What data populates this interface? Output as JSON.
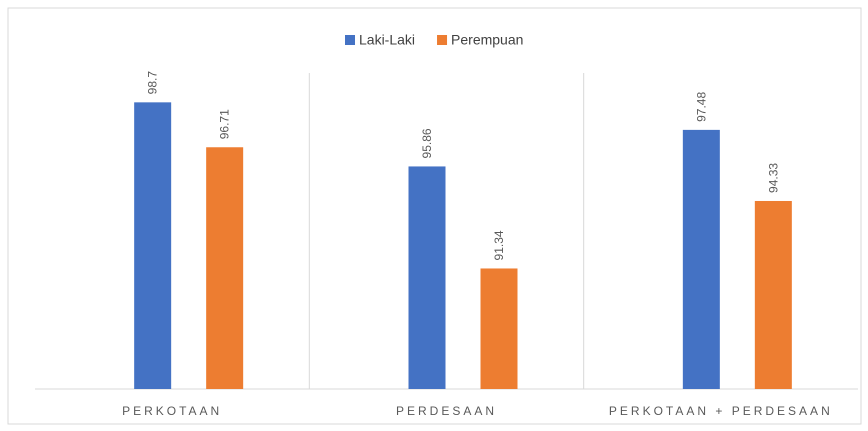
{
  "chart_data": {
    "type": "bar",
    "categories": [
      "PERKOTAAN",
      "PERDESAAN",
      "PERKOTAAN + PERDESAAN"
    ],
    "series": [
      {
        "name": "Laki-Laki",
        "color": "#4472c4",
        "values": [
          98.7,
          95.86,
          97.48
        ]
      },
      {
        "name": "Perempuan",
        "color": "#ed7d31",
        "values": [
          96.71,
          91.34,
          94.33
        ]
      }
    ],
    "ylim": [
      86,
      100
    ],
    "legend": "top"
  }
}
